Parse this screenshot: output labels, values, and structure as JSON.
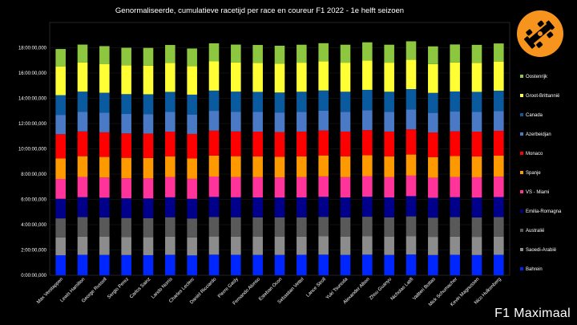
{
  "watermark": "F1 Maximaal",
  "logo_icon": "race-car-icon",
  "colors": {
    "background": "#000000",
    "logo_bg": "#f7941d"
  },
  "chart_data": {
    "type": "bar",
    "stacked": true,
    "title": "Genormaliseerde, cumulatieve racetijd per race en coureur F1 2022 - 1e helft seizoen",
    "xlabel": "",
    "ylabel": "",
    "y_unit": "h:mm:ss,sss",
    "ylim": [
      0,
      20
    ],
    "y_ticks": [
      "0:00:00,000",
      "2:00:00,000",
      "4:00:00,000",
      "6:00:00,000",
      "8:00:00,000",
      "10:00:00,000",
      "12:00:00,000",
      "14:00:00,000",
      "16:00:00,000",
      "18:00:00,000"
    ],
    "y_tick_values": [
      0,
      2,
      4,
      6,
      8,
      10,
      12,
      14,
      16,
      18
    ],
    "legend_position": "right",
    "categories": [
      "Max Verstappen",
      "Lewis Hamilton",
      "George Russell",
      "Sergio Perez",
      "Carlos Sainz",
      "Lando Norris",
      "Charles Leclerc",
      "Daniel Ricciardo",
      "Pierre Gasly",
      "Fernando Alonso",
      "Esteban Ocon",
      "Sebastian Vettel",
      "Lance Stroll",
      "Yuki Tsunoda",
      "Alexander Albon",
      "Zhou Guanyu",
      "Nicholas Latifi",
      "Valtteri Bottas",
      "Mick Schumacher",
      "Kevin Magnussen",
      "Nico Hulkenberg"
    ],
    "series": [
      {
        "name": "Bahrein",
        "color": "#0026ff",
        "values": [
          1.58,
          1.62,
          1.61,
          1.6,
          1.59,
          1.62,
          1.57,
          1.63,
          1.62,
          1.61,
          1.61,
          1.62,
          1.63,
          1.61,
          1.63,
          1.61,
          1.64,
          1.6,
          1.62,
          1.6,
          1.62
        ]
      },
      {
        "name": "Saoedi-Arabië",
        "color": "#8c8c8c",
        "values": [
          1.42,
          1.44,
          1.44,
          1.42,
          1.42,
          1.44,
          1.42,
          1.44,
          1.44,
          1.44,
          1.44,
          1.44,
          1.45,
          1.44,
          1.45,
          1.44,
          1.46,
          1.44,
          1.44,
          1.44,
          1.44
        ]
      },
      {
        "name": "Australië",
        "color": "#595959",
        "values": [
          1.5,
          1.54,
          1.52,
          1.51,
          1.51,
          1.53,
          1.5,
          1.54,
          1.53,
          1.53,
          1.53,
          1.52,
          1.54,
          1.53,
          1.55,
          1.53,
          1.56,
          1.52,
          1.54,
          1.53,
          1.54
        ]
      },
      {
        "name": "Emilia-Romagna",
        "color": "#00008b",
        "values": [
          1.55,
          1.58,
          1.57,
          1.56,
          1.56,
          1.58,
          1.56,
          1.59,
          1.58,
          1.58,
          1.57,
          1.58,
          1.59,
          1.58,
          1.59,
          1.58,
          1.6,
          1.57,
          1.58,
          1.58,
          1.59
        ]
      },
      {
        "name": "VS - Miami",
        "color": "#ff3399",
        "values": [
          1.57,
          1.6,
          1.59,
          1.58,
          1.58,
          1.6,
          1.58,
          1.61,
          1.6,
          1.6,
          1.59,
          1.6,
          1.61,
          1.6,
          1.62,
          1.6,
          1.62,
          1.59,
          1.6,
          1.6,
          1.61
        ]
      },
      {
        "name": "Spanje",
        "color": "#ff9900",
        "values": [
          1.62,
          1.64,
          1.63,
          1.62,
          1.62,
          1.64,
          1.62,
          1.66,
          1.65,
          1.64,
          1.64,
          1.65,
          1.66,
          1.65,
          1.66,
          1.65,
          1.67,
          1.63,
          1.65,
          1.65,
          1.66
        ]
      },
      {
        "name": "Monaco",
        "color": "#ff0000",
        "values": [
          1.92,
          1.96,
          1.95,
          1.93,
          1.93,
          1.95,
          1.93,
          1.97,
          1.96,
          1.96,
          1.95,
          1.96,
          1.97,
          1.96,
          1.98,
          1.96,
          1.99,
          1.95,
          1.96,
          1.96,
          1.97
        ]
      },
      {
        "name": "Azerbeidjan",
        "color": "#4a7ac6",
        "values": [
          1.53,
          1.56,
          1.55,
          1.54,
          1.54,
          1.56,
          1.54,
          1.57,
          1.56,
          1.56,
          1.55,
          1.56,
          1.57,
          1.56,
          1.58,
          1.56,
          1.58,
          1.55,
          1.56,
          1.56,
          1.57
        ]
      },
      {
        "name": "Canada",
        "color": "#0a5aa0",
        "values": [
          1.56,
          1.59,
          1.58,
          1.57,
          1.57,
          1.59,
          1.57,
          1.6,
          1.59,
          1.59,
          1.58,
          1.59,
          1.6,
          1.59,
          1.61,
          1.59,
          1.61,
          1.58,
          1.59,
          1.59,
          1.6
        ]
      },
      {
        "name": "Groot-Brittannië",
        "color": "#ffff33",
        "values": [
          2.26,
          2.3,
          2.28,
          2.27,
          2.27,
          2.29,
          2.26,
          2.31,
          2.3,
          2.29,
          2.29,
          2.3,
          2.31,
          2.3,
          2.32,
          2.3,
          2.33,
          2.28,
          2.3,
          2.3,
          2.31
        ]
      },
      {
        "name": "Oostenrijk",
        "color": "#8dc63f",
        "values": [
          1.39,
          1.42,
          1.41,
          1.4,
          1.4,
          1.42,
          1.39,
          1.43,
          1.42,
          1.42,
          1.41,
          1.42,
          1.43,
          1.42,
          1.44,
          1.42,
          1.45,
          1.4,
          1.42,
          1.42,
          1.43
        ]
      }
    ]
  }
}
